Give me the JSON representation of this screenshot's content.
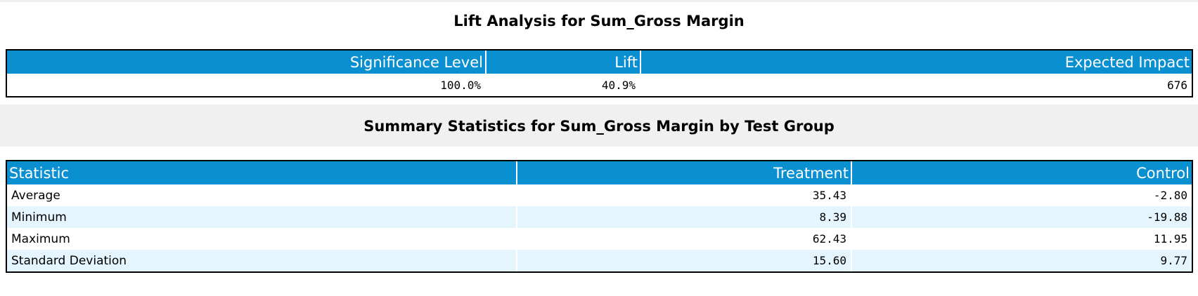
{
  "lift_section": {
    "title": "Lift Analysis for Sum_Gross Margin",
    "headers": [
      "Significance Level",
      "Lift",
      "Expected Impact"
    ],
    "values": [
      "100.0%",
      "40.9%",
      "676"
    ]
  },
  "summary_section": {
    "title": "Summary Statistics for Sum_Gross Margin by Test Group",
    "headers": [
      "Statistic",
      "Treatment",
      "Control"
    ],
    "rows": [
      [
        "Average",
        "35.43",
        "-2.80"
      ],
      [
        "Minimum",
        "8.39",
        "-19.88"
      ],
      [
        "Maximum",
        "62.43",
        "11.95"
      ],
      [
        "Standard Deviation",
        "15.60",
        "9.77"
      ]
    ]
  },
  "colors": {
    "header_bg": "#0a8fd0",
    "header_text": "#ffffff",
    "alt_row_bg": "#e5f5fd",
    "section_band_bg": "#f0f0f0"
  }
}
